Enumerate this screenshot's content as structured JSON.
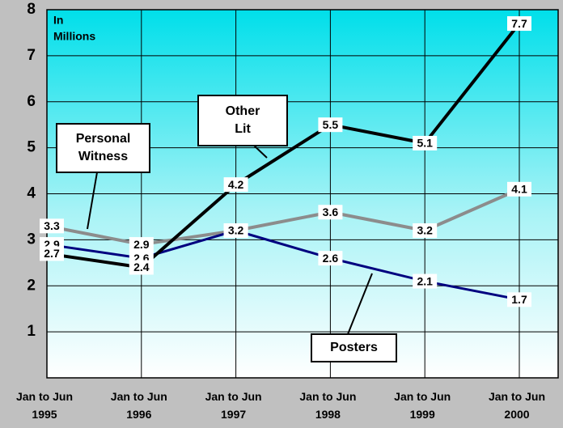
{
  "chart_data": {
    "type": "line",
    "categories": [
      "Jan to Jun 1995",
      "Jan to Jun 1996",
      "Jan to Jun 1997",
      "Jan to Jun 1998",
      "Jan to Jun 1999",
      "Jan to Jun 2000"
    ],
    "series": [
      {
        "name": "Personal Witness",
        "color": "#8c8c8c",
        "values": [
          3.3,
          2.9,
          3.2,
          3.6,
          3.2,
          4.1
        ]
      },
      {
        "name": "Posters",
        "color": "#00007f",
        "values": [
          2.9,
          2.6,
          3.2,
          2.6,
          2.1,
          1.7
        ]
      },
      {
        "name": "Other Lit",
        "color": "#000000",
        "values": [
          2.7,
          2.4,
          4.2,
          5.5,
          5.1,
          7.7
        ]
      }
    ],
    "ylim": [
      0,
      8
    ],
    "yticks": [
      1,
      2,
      3,
      4,
      5,
      6,
      7,
      8
    ],
    "grid": true,
    "annotations": [
      {
        "lines": [
          "In",
          "Millions"
        ]
      },
      {
        "lines": [
          "Personal",
          "Witness"
        ]
      },
      {
        "lines": [
          "Other",
          "Lit"
        ]
      },
      {
        "lines": [
          "Posters"
        ]
      }
    ]
  }
}
